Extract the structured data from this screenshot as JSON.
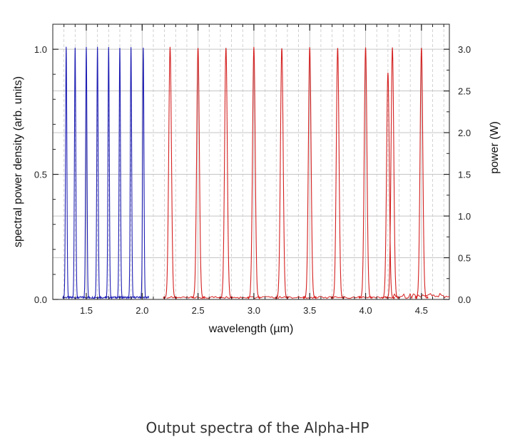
{
  "caption": "Output spectra of the Alpha-HP",
  "chart_data": {
    "type": "line",
    "xlabel": "wavelength (µm)",
    "ylabel_left": "spectral power density (arb. units)",
    "ylabel_right": "power (W)",
    "xlim": [
      1.2,
      4.75
    ],
    "ylim_left": [
      0,
      1.1
    ],
    "ylim_right": [
      0,
      3.3
    ],
    "x_ticks": [
      1.5,
      2.0,
      2.5,
      3.0,
      3.5,
      4.0,
      4.5
    ],
    "x_tick_labels": [
      "1.5",
      "2.0",
      "2.5",
      "3.0",
      "3.5",
      "4.0",
      "4.5"
    ],
    "y_left_ticks": [
      0.0,
      0.5,
      1.0
    ],
    "y_left_tick_labels": [
      "0.0",
      "0.5",
      "1.0"
    ],
    "y_right_ticks": [
      0.0,
      0.5,
      1.0,
      1.5,
      2.0,
      2.5,
      3.0
    ],
    "y_right_tick_labels": [
      "0.0",
      "0.5",
      "1.0",
      "1.5",
      "2.0",
      "2.5",
      "3.0"
    ],
    "grid": true,
    "series": [
      {
        "color": "#1f1fb4",
        "peaks": [
          {
            "center": 1.32,
            "height": 1.0
          },
          {
            "center": 1.4,
            "height": 1.0
          },
          {
            "center": 1.5,
            "height": 1.0
          },
          {
            "center": 1.6,
            "height": 1.0
          },
          {
            "center": 1.7,
            "height": 1.0
          },
          {
            "center": 1.8,
            "height": 1.0
          },
          {
            "center": 1.9,
            "height": 1.0
          },
          {
            "center": 2.01,
            "height": 1.0
          }
        ]
      },
      {
        "color": "#d42020",
        "peaks": [
          {
            "center": 2.25,
            "height": 1.0
          },
          {
            "center": 2.5,
            "height": 1.0
          },
          {
            "center": 2.75,
            "height": 1.0
          },
          {
            "center": 3.0,
            "height": 1.0
          },
          {
            "center": 3.25,
            "height": 1.0
          },
          {
            "center": 3.5,
            "height": 1.0
          },
          {
            "center": 3.75,
            "height": 1.0
          },
          {
            "center": 4.0,
            "height": 1.0
          },
          {
            "center": 4.2,
            "height": 0.9
          },
          {
            "center": 4.24,
            "height": 1.0
          },
          {
            "center": 4.5,
            "height": 1.0
          }
        ]
      }
    ]
  }
}
